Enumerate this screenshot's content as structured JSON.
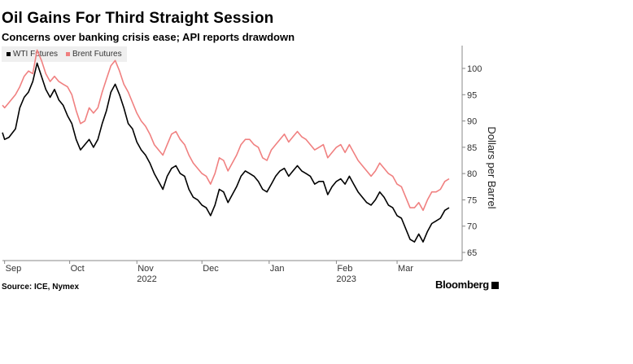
{
  "title": "Oil Gains For Third Straight Session",
  "subtitle": "Concerns over banking crisis ease; API reports drawdown",
  "source": "Source: ICE, Nymex",
  "brand": "Bloomberg",
  "chart_data": {
    "type": "line",
    "ylabel": "Dollars per Barrel",
    "ylim": [
      64,
      104
    ],
    "yticks": [
      65,
      70,
      75,
      80,
      85,
      90,
      95,
      100
    ],
    "y_axis_position": "right",
    "grid": false,
    "legend_position": "top-left",
    "x_months": [
      {
        "label": "Sep",
        "day": 1,
        "year": ""
      },
      {
        "label": "Oct",
        "day": 31,
        "year": ""
      },
      {
        "label": "Nov",
        "day": 62,
        "year": "2022"
      },
      {
        "label": "Dec",
        "day": 92,
        "year": ""
      },
      {
        "label": "Jan",
        "day": 123,
        "year": ""
      },
      {
        "label": "Feb",
        "day": 154,
        "year": "2023"
      },
      {
        "label": "Mar",
        "day": 182,
        "year": ""
      }
    ],
    "series": [
      {
        "name": "WTI Futures",
        "color": "#000000",
        "points": [
          [
            0,
            87.8
          ],
          [
            1,
            86.5
          ],
          [
            3,
            86.9
          ],
          [
            6,
            88.5
          ],
          [
            8,
            92.5
          ],
          [
            10,
            94.5
          ],
          [
            12,
            95.5
          ],
          [
            14,
            97.5
          ],
          [
            16,
            101.0
          ],
          [
            18,
            98.5
          ],
          [
            20,
            96.0
          ],
          [
            22,
            94.5
          ],
          [
            24,
            96.0
          ],
          [
            26,
            94.0
          ],
          [
            28,
            93.0
          ],
          [
            30,
            91.0
          ],
          [
            32,
            89.5
          ],
          [
            34,
            86.5
          ],
          [
            36,
            84.5
          ],
          [
            38,
            85.5
          ],
          [
            40,
            86.5
          ],
          [
            42,
            85.0
          ],
          [
            44,
            86.5
          ],
          [
            46,
            89.5
          ],
          [
            48,
            92.0
          ],
          [
            50,
            95.5
          ],
          [
            52,
            97.0
          ],
          [
            54,
            95.0
          ],
          [
            56,
            92.5
          ],
          [
            58,
            89.5
          ],
          [
            60,
            88.5
          ],
          [
            62,
            86.0
          ],
          [
            64,
            84.5
          ],
          [
            66,
            83.5
          ],
          [
            68,
            82.0
          ],
          [
            70,
            80.0
          ],
          [
            72,
            78.5
          ],
          [
            74,
            77.0
          ],
          [
            76,
            79.5
          ],
          [
            78,
            81.0
          ],
          [
            80,
            81.5
          ],
          [
            82,
            80.0
          ],
          [
            84,
            79.5
          ],
          [
            86,
            77.0
          ],
          [
            88,
            75.5
          ],
          [
            90,
            75.0
          ],
          [
            92,
            74.0
          ],
          [
            94,
            73.5
          ],
          [
            96,
            72.0
          ],
          [
            98,
            74.0
          ],
          [
            100,
            77.0
          ],
          [
            102,
            76.5
          ],
          [
            104,
            74.5
          ],
          [
            106,
            76.0
          ],
          [
            108,
            77.5
          ],
          [
            110,
            79.5
          ],
          [
            112,
            80.5
          ],
          [
            114,
            80.0
          ],
          [
            116,
            79.5
          ],
          [
            118,
            78.5
          ],
          [
            120,
            77.0
          ],
          [
            122,
            76.5
          ],
          [
            124,
            78.0
          ],
          [
            126,
            79.5
          ],
          [
            128,
            80.5
          ],
          [
            130,
            81.0
          ],
          [
            132,
            79.5
          ],
          [
            134,
            80.5
          ],
          [
            136,
            81.5
          ],
          [
            138,
            80.5
          ],
          [
            140,
            80.0
          ],
          [
            142,
            79.5
          ],
          [
            144,
            78.0
          ],
          [
            146,
            78.5
          ],
          [
            148,
            78.5
          ],
          [
            150,
            76.0
          ],
          [
            152,
            77.5
          ],
          [
            154,
            78.5
          ],
          [
            156,
            79.0
          ],
          [
            158,
            78.0
          ],
          [
            160,
            79.5
          ],
          [
            162,
            78.0
          ],
          [
            164,
            76.5
          ],
          [
            166,
            75.5
          ],
          [
            168,
            74.5
          ],
          [
            170,
            74.0
          ],
          [
            172,
            75.0
          ],
          [
            174,
            76.5
          ],
          [
            176,
            75.5
          ],
          [
            178,
            74.0
          ],
          [
            180,
            73.5
          ],
          [
            182,
            72.0
          ],
          [
            184,
            71.5
          ],
          [
            186,
            69.5
          ],
          [
            188,
            67.5
          ],
          [
            190,
            67.0
          ],
          [
            192,
            68.5
          ],
          [
            194,
            67.0
          ],
          [
            196,
            69.0
          ],
          [
            198,
            70.5
          ],
          [
            200,
            71.0
          ],
          [
            202,
            71.5
          ],
          [
            204,
            73.0
          ],
          [
            206,
            73.5
          ]
        ]
      },
      {
        "name": "Brent Futures",
        "color": "#f08080",
        "points": [
          [
            0,
            93.0
          ],
          [
            1,
            92.5
          ],
          [
            3,
            93.5
          ],
          [
            6,
            95.0
          ],
          [
            8,
            96.5
          ],
          [
            10,
            98.5
          ],
          [
            12,
            99.5
          ],
          [
            14,
            99.0
          ],
          [
            16,
            103.5
          ],
          [
            18,
            101.5
          ],
          [
            20,
            99.0
          ],
          [
            22,
            97.5
          ],
          [
            24,
            98.5
          ],
          [
            26,
            97.5
          ],
          [
            28,
            97.0
          ],
          [
            30,
            96.5
          ],
          [
            32,
            95.0
          ],
          [
            34,
            92.0
          ],
          [
            36,
            89.5
          ],
          [
            38,
            90.0
          ],
          [
            40,
            92.5
          ],
          [
            42,
            91.5
          ],
          [
            44,
            92.5
          ],
          [
            46,
            95.5
          ],
          [
            48,
            98.0
          ],
          [
            50,
            100.5
          ],
          [
            52,
            101.5
          ],
          [
            54,
            99.5
          ],
          [
            56,
            97.0
          ],
          [
            58,
            95.5
          ],
          [
            60,
            93.5
          ],
          [
            62,
            91.5
          ],
          [
            64,
            90.0
          ],
          [
            66,
            89.0
          ],
          [
            68,
            87.5
          ],
          [
            70,
            85.5
          ],
          [
            72,
            84.5
          ],
          [
            74,
            83.5
          ],
          [
            76,
            85.5
          ],
          [
            78,
            87.5
          ],
          [
            80,
            88.0
          ],
          [
            82,
            86.5
          ],
          [
            84,
            85.5
          ],
          [
            86,
            83.5
          ],
          [
            88,
            82.0
          ],
          [
            90,
            81.0
          ],
          [
            92,
            80.0
          ],
          [
            94,
            79.5
          ],
          [
            96,
            78.0
          ],
          [
            98,
            80.0
          ],
          [
            100,
            83.0
          ],
          [
            102,
            82.5
          ],
          [
            104,
            80.5
          ],
          [
            106,
            82.0
          ],
          [
            108,
            83.5
          ],
          [
            110,
            85.5
          ],
          [
            112,
            86.5
          ],
          [
            114,
            86.5
          ],
          [
            116,
            85.5
          ],
          [
            118,
            85.0
          ],
          [
            120,
            83.0
          ],
          [
            122,
            82.5
          ],
          [
            124,
            84.5
          ],
          [
            126,
            85.5
          ],
          [
            128,
            86.5
          ],
          [
            130,
            87.5
          ],
          [
            132,
            86.0
          ],
          [
            134,
            87.0
          ],
          [
            136,
            88.0
          ],
          [
            138,
            87.0
          ],
          [
            140,
            86.5
          ],
          [
            142,
            85.5
          ],
          [
            144,
            84.5
          ],
          [
            146,
            85.0
          ],
          [
            148,
            85.5
          ],
          [
            150,
            83.0
          ],
          [
            152,
            84.0
          ],
          [
            154,
            85.0
          ],
          [
            156,
            85.5
          ],
          [
            158,
            84.0
          ],
          [
            160,
            85.5
          ],
          [
            162,
            84.0
          ],
          [
            164,
            82.5
          ],
          [
            166,
            81.5
          ],
          [
            168,
            80.5
          ],
          [
            170,
            79.5
          ],
          [
            172,
            80.5
          ],
          [
            174,
            82.0
          ],
          [
            176,
            81.0
          ],
          [
            178,
            80.0
          ],
          [
            180,
            79.5
          ],
          [
            182,
            78.0
          ],
          [
            184,
            77.5
          ],
          [
            186,
            75.5
          ],
          [
            188,
            73.5
          ],
          [
            190,
            73.5
          ],
          [
            192,
            74.5
          ],
          [
            194,
            73.0
          ],
          [
            196,
            75.0
          ],
          [
            198,
            76.5
          ],
          [
            200,
            76.5
          ],
          [
            202,
            77.0
          ],
          [
            204,
            78.5
          ],
          [
            206,
            79.0
          ]
        ]
      }
    ]
  }
}
